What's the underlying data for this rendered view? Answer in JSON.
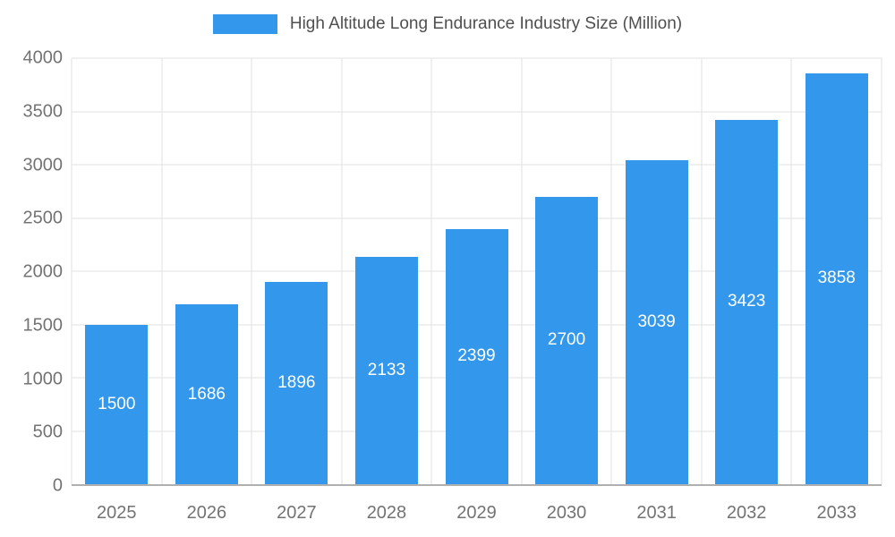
{
  "chart_data": {
    "type": "bar",
    "title": "High Altitude Long Endurance Industry Size (Million)",
    "categories": [
      "2025",
      "2026",
      "2027",
      "2028",
      "2029",
      "2030",
      "2031",
      "2032",
      "2033"
    ],
    "values": [
      1500,
      1686,
      1896,
      2133,
      2399,
      2700,
      3039,
      3423,
      3858
    ],
    "xlabel": "",
    "ylabel": "",
    "ylim": [
      0,
      4000
    ],
    "ytick_step": 500,
    "ytick_labels": [
      "0",
      "500",
      "1000",
      "1500",
      "2000",
      "2500",
      "3000",
      "3500",
      "4000"
    ],
    "grid": "on",
    "legend_position": "top",
    "colors": {
      "bar": "#3398ec",
      "value_label": "#ffffff",
      "axis_text": "#737373",
      "gridline": "#e2e2e2",
      "axis_line": "#b0b0b0",
      "legend_text": "#4f4f4f"
    }
  }
}
